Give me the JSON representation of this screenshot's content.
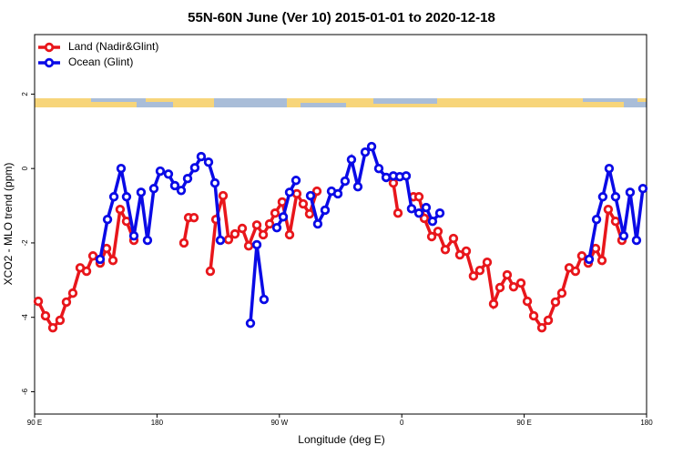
{
  "chart_data": {
    "type": "line",
    "title": "55N-60N June (Ver 10)   2015-01-01 to 2020-12-18",
    "x_label": "Longitude (deg E)",
    "y_label": "XCO2 - MLO trend (ppm)",
    "xlim": [
      90,
      540
    ],
    "xticks": [
      {
        "value": 90,
        "label": "90 E"
      },
      {
        "value": 180,
        "label": "180"
      },
      {
        "value": 270,
        "label": "90 W"
      },
      {
        "value": 360,
        "label": "0"
      },
      {
        "value": 450,
        "label": "90 E"
      },
      {
        "value": 540,
        "label": "180"
      }
    ],
    "ylim": [
      -6.6,
      3.6
    ],
    "yticks": [
      2,
      0,
      -2,
      -4,
      -6
    ],
    "legend": "top-left",
    "series": [
      {
        "name": "Land (Nadir&Glint)",
        "color": "#e8161b",
        "x": [
          92.7,
          98.0,
          103.4,
          108.7,
          113.4,
          118.1,
          123.5,
          128.2,
          132.9,
          138.2,
          142.9,
          147.6,
          152.9,
          157.6,
          163.0,
          null,
          199.8,
          203.2,
          207.2,
          null,
          219.2,
          223.3,
          228.6,
          232.6,
          237.3,
          242.7,
          247.4,
          253.4,
          258.1,
          262.8,
          266.8,
          272.1,
          277.5,
          282.8,
          287.5,
          292.2,
          297.6,
          null,
          353.8,
          357.2,
          null,
          368.6,
          372.6,
          376.6,
          382.0,
          386.6,
          392.0,
          398.0,
          402.7,
          407.4,
          412.7,
          417.4,
          422.8,
          427.5,
          432.2,
          437.5,
          442.2,
          447.6,
          452.3,
          457.0,
          463.0,
          467.7,
          473.0,
          477.7,
          483.1,
          487.7,
          492.4,
          497.1,
          502.5,
          507.2,
          511.8,
          517.2,
          521.9
        ],
        "values": [
          -3.57,
          -3.96,
          -4.28,
          -4.08,
          -3.59,
          -3.35,
          -2.67,
          -2.76,
          -2.35,
          -2.54,
          -2.15,
          -2.47,
          -1.1,
          -1.42,
          -1.93,
          null,
          -2.0,
          -1.32,
          -1.32,
          null,
          -2.76,
          -1.37,
          -0.73,
          -1.91,
          -1.76,
          -1.61,
          -2.08,
          -1.52,
          -1.78,
          -1.49,
          -1.2,
          -0.9,
          -1.78,
          -0.68,
          -0.95,
          -1.22,
          -0.61,
          null,
          -0.39,
          -1.2,
          null,
          -0.76,
          -0.76,
          -1.34,
          -1.83,
          -1.69,
          -2.18,
          -1.88,
          -2.32,
          -2.22,
          -2.89,
          -2.74,
          -2.52,
          -3.64,
          -3.2,
          -2.86,
          -3.18,
          -3.08,
          -3.57,
          -3.96,
          -4.28,
          -4.08,
          -3.59,
          -3.35,
          -2.67,
          -2.76,
          -2.35,
          -2.54,
          -2.15,
          -2.47,
          -1.1,
          -1.42,
          -1.93
        ]
      },
      {
        "name": "Ocean (Glint)",
        "color": "#0a0ae6",
        "x": [
          138.2,
          143.6,
          148.3,
          153.6,
          157.6,
          163.0,
          168.3,
          173.0,
          177.7,
          182.4,
          188.4,
          193.1,
          197.8,
          202.5,
          207.8,
          212.5,
          217.9,
          222.6,
          226.6,
          null,
          248.7,
          253.4,
          258.7,
          null,
          268.1,
          272.8,
          277.5,
          282.2,
          null,
          292.9,
          298.2,
          303.6,
          308.3,
          313.0,
          318.3,
          323.0,
          327.7,
          333.1,
          337.8,
          343.1,
          348.5,
          353.8,
          358.5,
          363.2,
          367.2,
          372.6,
          377.9,
          382.6,
          388.0,
          null,
          497.8,
          503.2,
          507.8,
          512.5,
          517.2,
          523.2,
          527.9,
          532.6,
          537.3
        ],
        "values": [
          -2.44,
          -1.37,
          -0.76,
          0.0,
          -0.76,
          -1.81,
          -0.64,
          -1.93,
          -0.54,
          -0.07,
          -0.15,
          -0.46,
          -0.59,
          -0.27,
          0.02,
          0.32,
          0.17,
          -0.39,
          -1.93,
          null,
          -4.16,
          -2.05,
          -3.52,
          null,
          -1.59,
          -1.3,
          -0.64,
          -0.32,
          null,
          -0.73,
          -1.49,
          -1.12,
          -0.61,
          -0.68,
          -0.34,
          0.24,
          -0.49,
          0.44,
          0.59,
          0.0,
          -0.24,
          -0.2,
          -0.22,
          -0.2,
          -1.08,
          -1.2,
          -1.05,
          -1.42,
          -1.2,
          null,
          -2.44,
          -1.37,
          -0.76,
          0.0,
          -0.76,
          -1.81,
          -0.64,
          -1.93,
          -0.54
        ]
      }
    ]
  }
}
